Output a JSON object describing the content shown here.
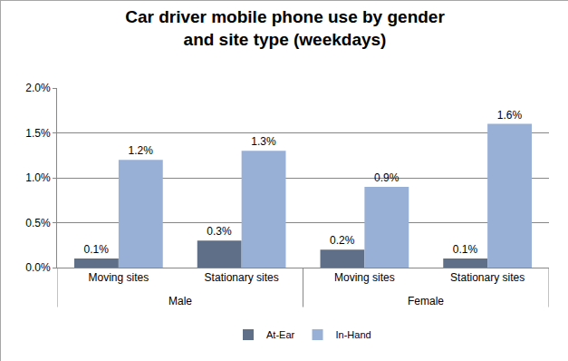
{
  "chart_data": {
    "type": "bar",
    "title": "Car driver mobile phone use by gender\nand site type (weekdays)",
    "categories": [
      "Moving sites",
      "Stationary sites",
      "Moving sites",
      "Stationary sites"
    ],
    "category_groups": [
      "Male",
      "Male",
      "Female",
      "Female"
    ],
    "series": [
      {
        "name": "At-Ear",
        "color": "#5e6f87",
        "values": [
          0.1,
          0.3,
          0.2,
          0.1
        ],
        "value_labels": [
          "0.1%",
          "0.3%",
          "0.2%",
          "0.1%"
        ]
      },
      {
        "name": "In-Hand",
        "color": "#98b0d6",
        "values": [
          1.2,
          1.3,
          0.9,
          1.6
        ],
        "value_labels": [
          "1.2%",
          "1.3%",
          "0.9%",
          "1.6%"
        ]
      }
    ],
    "ylim": [
      0,
      2.0
    ],
    "yticks": [
      {
        "value": 0,
        "label": "0.0%"
      },
      {
        "value": 0.5,
        "label": "0.5%"
      },
      {
        "value": 1.0,
        "label": "1.0%"
      },
      {
        "value": 1.5,
        "label": "1.5%"
      },
      {
        "value": 2.0,
        "label": "2.0%"
      }
    ],
    "grid": true,
    "legend": "bottom",
    "data_labels": true
  }
}
